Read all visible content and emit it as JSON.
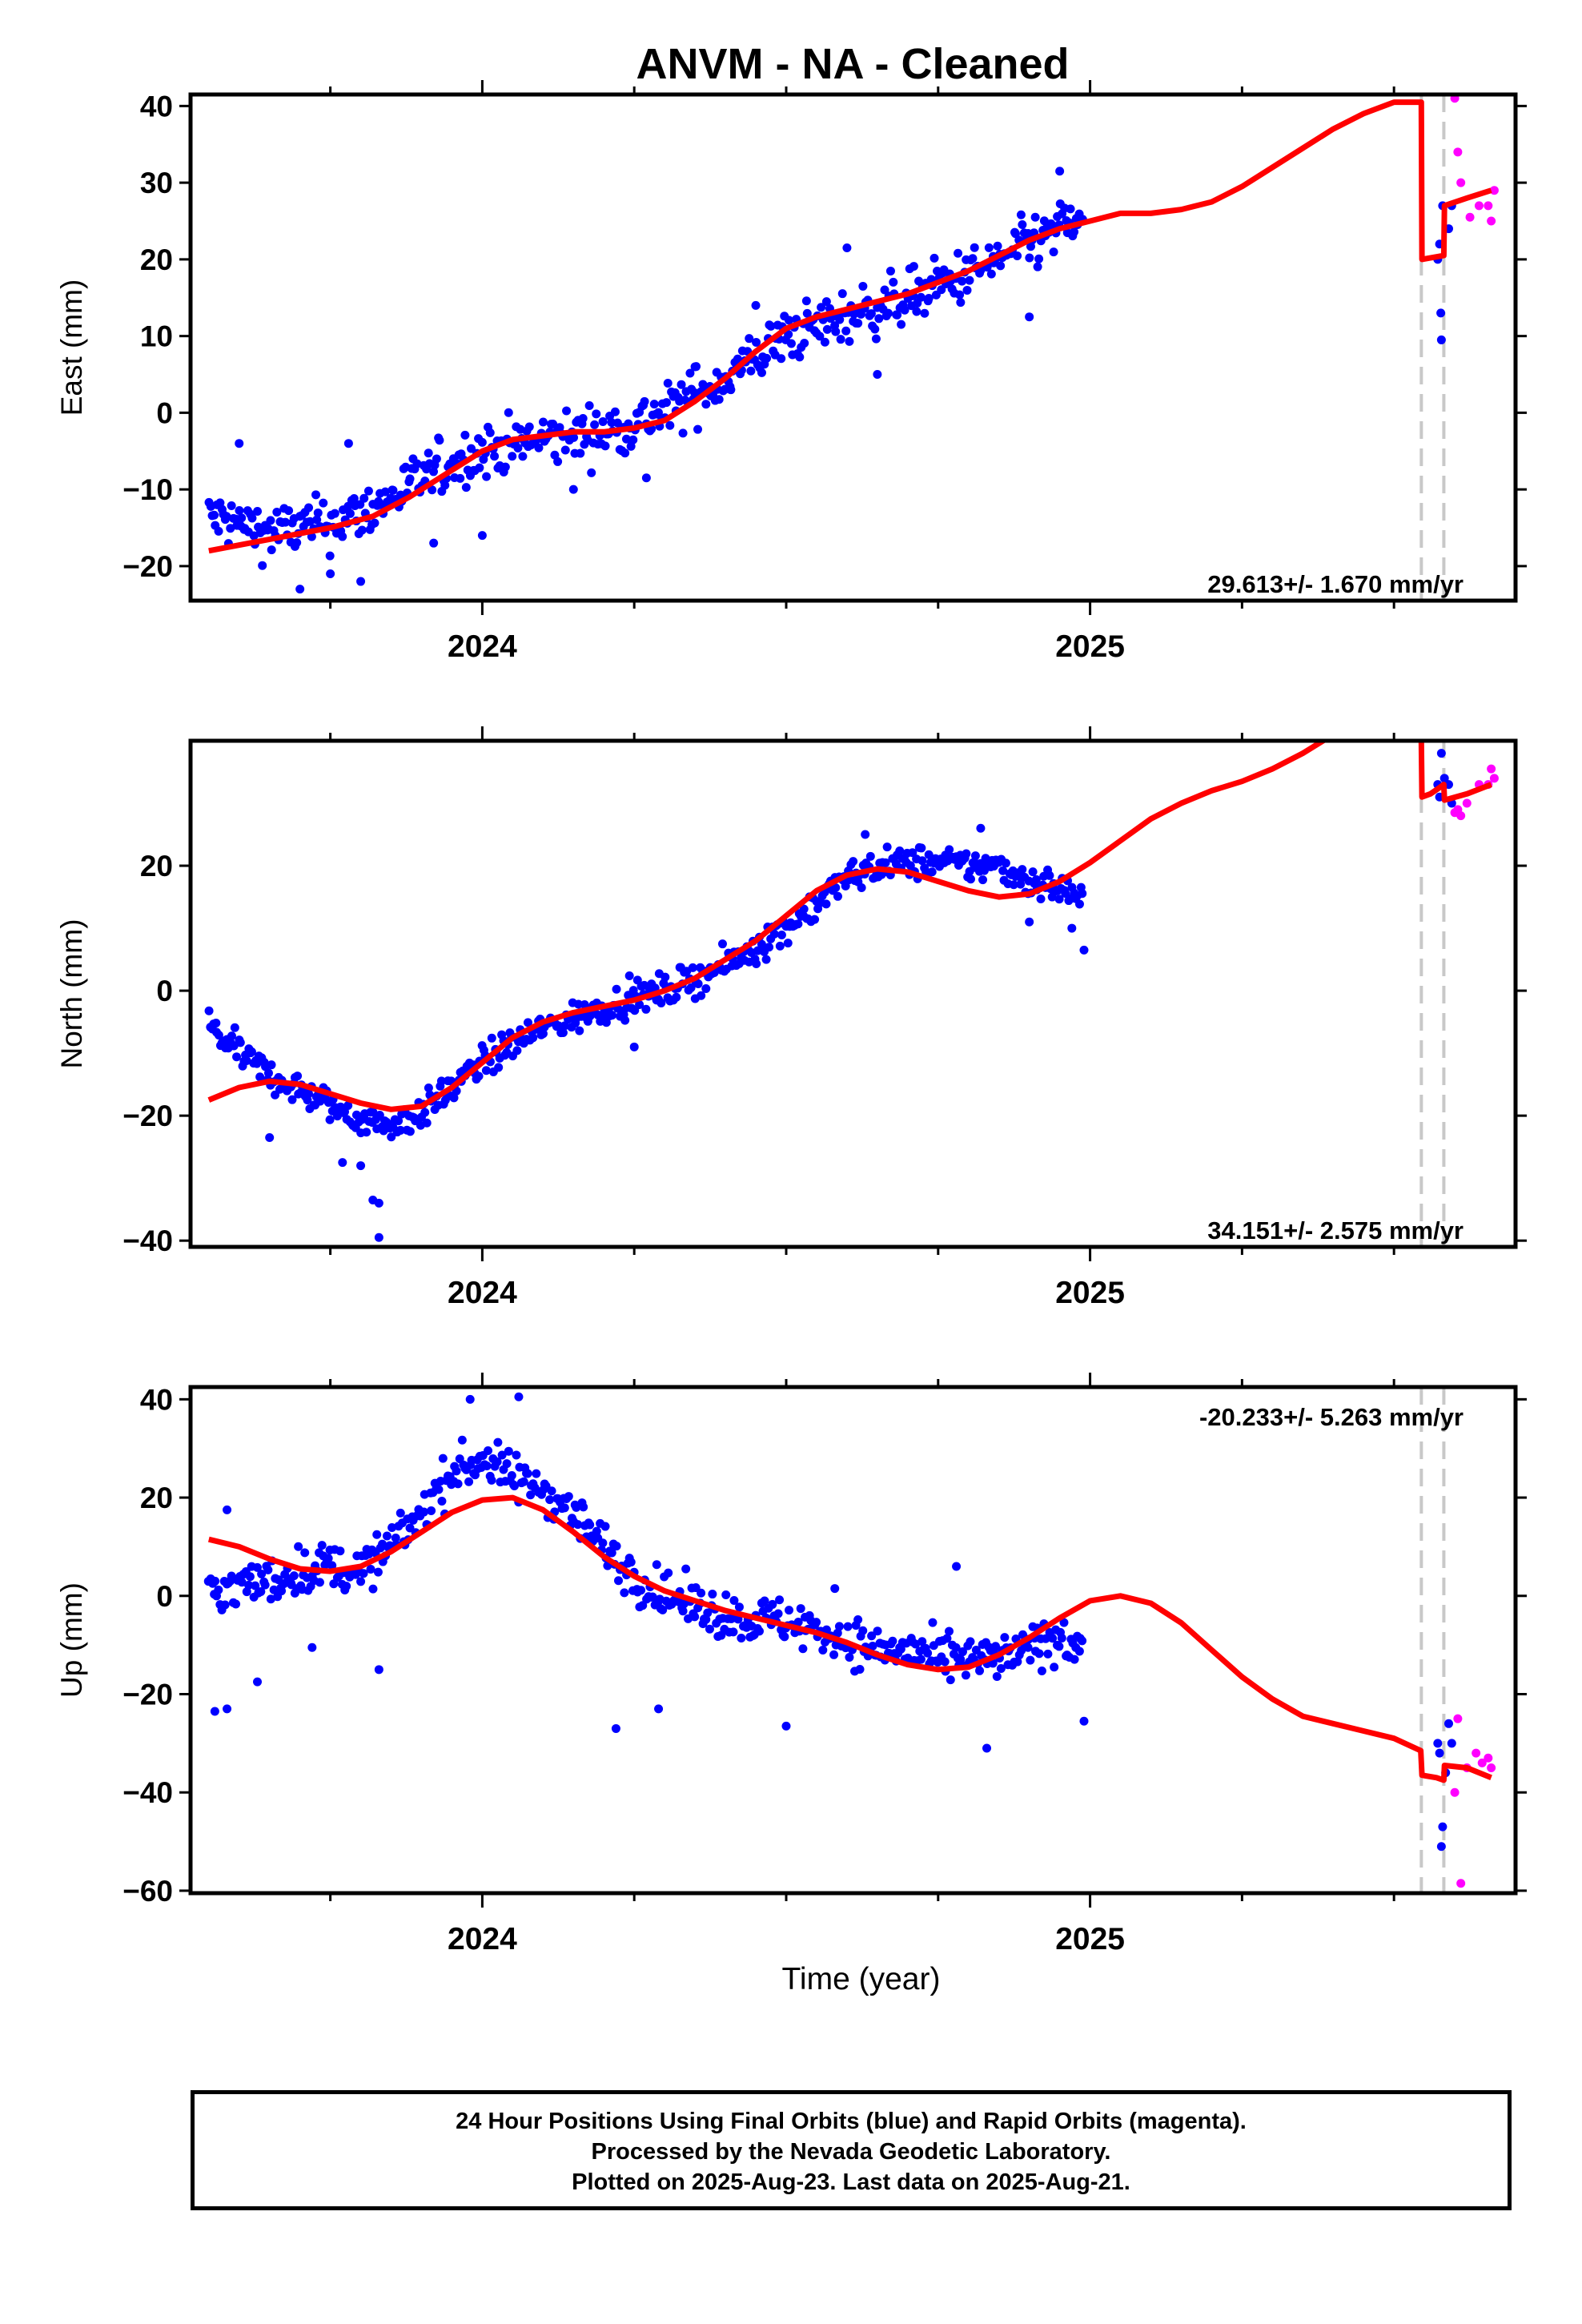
{
  "title": "ANVM  - NA - Cleaned",
  "chart_data": [
    {
      "type": "scatter",
      "panel": "east",
      "ylabel": "East (mm)",
      "ylim": [
        -24.5,
        41.5
      ],
      "yticks": [
        -20,
        -10,
        0,
        10,
        20,
        30,
        40
      ],
      "xlim": [
        2023.52,
        2025.7
      ],
      "xticks": [
        2024,
        2025
      ],
      "rate_text": "29.613+/- 1.670 mm/yr",
      "rate_position": "bottom-right",
      "offset_lines": [
        2025.545,
        2025.582
      ],
      "model": [
        [
          2023.55,
          -18
        ],
        [
          2023.65,
          -16.5
        ],
        [
          2023.75,
          -15
        ],
        [
          2023.82,
          -13.5
        ],
        [
          2023.88,
          -11
        ],
        [
          2023.95,
          -7.5
        ],
        [
          2024.0,
          -5
        ],
        [
          2024.05,
          -3.5
        ],
        [
          2024.1,
          -3
        ],
        [
          2024.15,
          -2.5
        ],
        [
          2024.2,
          -2.5
        ],
        [
          2024.25,
          -2
        ],
        [
          2024.3,
          -1
        ],
        [
          2024.35,
          1.5
        ],
        [
          2024.4,
          4.5
        ],
        [
          2024.45,
          8
        ],
        [
          2024.5,
          11
        ],
        [
          2024.55,
          12.5
        ],
        [
          2024.6,
          13.5
        ],
        [
          2024.65,
          14.5
        ],
        [
          2024.7,
          15.5
        ],
        [
          2024.75,
          17
        ],
        [
          2024.8,
          18.5
        ],
        [
          2024.85,
          20.5
        ],
        [
          2024.9,
          22.5
        ],
        [
          2024.95,
          24
        ],
        [
          2025.0,
          25
        ],
        [
          2025.05,
          26
        ],
        [
          2025.1,
          26
        ],
        [
          2025.15,
          26.5
        ],
        [
          2025.2,
          27.5
        ],
        [
          2025.25,
          29.5
        ],
        [
          2025.3,
          32
        ],
        [
          2025.35,
          34.5
        ],
        [
          2025.4,
          37
        ],
        [
          2025.45,
          39
        ],
        [
          2025.5,
          40.5
        ],
        [
          2025.545,
          40.5
        ],
        [
          2025.546,
          20
        ],
        [
          2025.582,
          20.5
        ],
        [
          2025.583,
          27
        ],
        [
          2025.62,
          28
        ],
        [
          2025.66,
          29
        ]
      ],
      "final_anchors": [
        [
          2023.55,
          -13.5
        ],
        [
          2023.65,
          -15.5
        ],
        [
          2023.75,
          -14.5
        ],
        [
          2023.82,
          -12.5
        ],
        [
          2023.88,
          -9.5
        ],
        [
          2023.95,
          -6.5
        ],
        [
          2024.0,
          -5
        ],
        [
          2024.1,
          -3.5
        ],
        [
          2024.2,
          -2.5
        ],
        [
          2024.3,
          0
        ],
        [
          2024.4,
          4.5
        ],
        [
          2024.5,
          10
        ],
        [
          2024.6,
          12.5
        ],
        [
          2024.7,
          15
        ],
        [
          2024.8,
          18
        ],
        [
          2024.9,
          22
        ],
        [
          2024.99,
          25.5
        ]
      ],
      "final_noise": 3.0,
      "final_outliers": [
        [
          2023.6,
          -4
        ],
        [
          2023.7,
          -23
        ],
        [
          2023.75,
          -21
        ],
        [
          2023.78,
          -4
        ],
        [
          2023.8,
          -22
        ],
        [
          2023.92,
          -17
        ],
        [
          2024.0,
          -16
        ],
        [
          2024.15,
          -10
        ],
        [
          2024.27,
          -8.5
        ],
        [
          2024.35,
          6
        ],
        [
          2024.45,
          14
        ],
        [
          2024.6,
          21.5
        ],
        [
          2024.65,
          5
        ],
        [
          2024.95,
          31.5
        ],
        [
          2024.9,
          12.5
        ]
      ],
      "rapid_points": [
        [
          2025.572,
          20
        ],
        [
          2025.575,
          22
        ],
        [
          2025.58,
          27
        ],
        [
          2025.577,
          13
        ],
        [
          2025.578,
          9.5
        ],
        [
          2025.59,
          24
        ],
        [
          2025.595,
          27
        ],
        [
          2025.6,
          41
        ],
        [
          2025.605,
          34
        ],
        [
          2025.61,
          30
        ],
        [
          2025.625,
          25.5
        ],
        [
          2025.64,
          27
        ],
        [
          2025.655,
          27
        ],
        [
          2025.66,
          25
        ],
        [
          2025.665,
          29
        ]
      ],
      "rapid_magenta_from": 2025.597
    },
    {
      "type": "scatter",
      "panel": "north",
      "ylabel": "North (mm)",
      "ylim": [
        -41,
        40
      ],
      "yticks": [
        -40,
        -20,
        0,
        20
      ],
      "xlim": [
        2023.52,
        2025.7
      ],
      "xticks": [
        2024,
        2025
      ],
      "rate_text": "34.151+/- 2.575 mm/yr",
      "rate_position": "bottom-right",
      "offset_lines": [
        2025.545,
        2025.582
      ],
      "model": [
        [
          2023.55,
          -17.5
        ],
        [
          2023.6,
          -15.5
        ],
        [
          2023.65,
          -14.5
        ],
        [
          2023.7,
          -15
        ],
        [
          2023.75,
          -16.5
        ],
        [
          2023.8,
          -18
        ],
        [
          2023.85,
          -19
        ],
        [
          2023.9,
          -18.5
        ],
        [
          2023.95,
          -15.5
        ],
        [
          2024.0,
          -11.5
        ],
        [
          2024.05,
          -7.5
        ],
        [
          2024.1,
          -5
        ],
        [
          2024.15,
          -3.5
        ],
        [
          2024.2,
          -2.5
        ],
        [
          2024.25,
          -1.5
        ],
        [
          2024.3,
          0
        ],
        [
          2024.35,
          2
        ],
        [
          2024.4,
          5
        ],
        [
          2024.45,
          8
        ],
        [
          2024.5,
          12
        ],
        [
          2024.55,
          16
        ],
        [
          2024.6,
          18.5
        ],
        [
          2024.65,
          19.5
        ],
        [
          2024.7,
          19
        ],
        [
          2024.75,
          17.5
        ],
        [
          2024.8,
          16
        ],
        [
          2024.85,
          15
        ],
        [
          2024.9,
          15.5
        ],
        [
          2024.95,
          17.5
        ],
        [
          2025.0,
          20.5
        ],
        [
          2025.05,
          24
        ],
        [
          2025.1,
          27.5
        ],
        [
          2025.15,
          30
        ],
        [
          2025.2,
          32
        ],
        [
          2025.25,
          33.5
        ],
        [
          2025.3,
          35.5
        ],
        [
          2025.35,
          38
        ],
        [
          2025.4,
          41
        ],
        [
          2025.45,
          44
        ],
        [
          2025.5,
          46
        ],
        [
          2025.544,
          46
        ],
        [
          2025.545,
          40
        ],
        [
          2025.546,
          31
        ],
        [
          2025.56,
          31.5
        ],
        [
          2025.575,
          32.5
        ],
        [
          2025.582,
          33
        ],
        [
          2025.583,
          30.5
        ],
        [
          2025.62,
          31.5
        ],
        [
          2025.66,
          33
        ]
      ],
      "final_anchors": [
        [
          2023.55,
          -5.5
        ],
        [
          2023.6,
          -10
        ],
        [
          2023.65,
          -13.5
        ],
        [
          2023.7,
          -16
        ],
        [
          2023.75,
          -18.5
        ],
        [
          2023.8,
          -20.5
        ],
        [
          2023.85,
          -21.5
        ],
        [
          2023.9,
          -19.5
        ],
        [
          2023.95,
          -15.5
        ],
        [
          2024.0,
          -11.5
        ],
        [
          2024.05,
          -8.5
        ],
        [
          2024.1,
          -6
        ],
        [
          2024.15,
          -4.5
        ],
        [
          2024.2,
          -2.5
        ],
        [
          2024.3,
          0
        ],
        [
          2024.4,
          4
        ],
        [
          2024.45,
          7
        ],
        [
          2024.5,
          10
        ],
        [
          2024.55,
          14
        ],
        [
          2024.6,
          18
        ],
        [
          2024.65,
          20
        ],
        [
          2024.7,
          20.5
        ],
        [
          2024.75,
          20.5
        ],
        [
          2024.8,
          20
        ],
        [
          2024.85,
          20
        ],
        [
          2024.9,
          17.5
        ],
        [
          2024.95,
          16.5
        ],
        [
          2024.99,
          14.5
        ]
      ],
      "final_noise": 2.2,
      "final_outliers": [
        [
          2023.65,
          -23.5
        ],
        [
          2023.77,
          -27.5
        ],
        [
          2023.8,
          -28
        ],
        [
          2023.82,
          -33.5
        ],
        [
          2023.83,
          -34
        ],
        [
          2023.83,
          -39.5
        ],
        [
          2024.25,
          -9
        ],
        [
          2024.63,
          25
        ],
        [
          2024.82,
          26
        ],
        [
          2024.99,
          6.5
        ],
        [
          2024.97,
          10
        ],
        [
          2024.9,
          11
        ]
      ],
      "rapid_points": [
        [
          2025.572,
          33
        ],
        [
          2025.575,
          31
        ],
        [
          2025.578,
          38
        ],
        [
          2025.583,
          34
        ],
        [
          2025.59,
          33
        ],
        [
          2025.595,
          30
        ],
        [
          2025.6,
          28.5
        ],
        [
          2025.605,
          29
        ],
        [
          2025.61,
          28
        ],
        [
          2025.62,
          30
        ],
        [
          2025.64,
          33
        ],
        [
          2025.655,
          33
        ],
        [
          2025.66,
          35.5
        ],
        [
          2025.665,
          34
        ]
      ],
      "rapid_magenta_from": 2025.597
    },
    {
      "type": "scatter",
      "panel": "up",
      "ylabel": "Up (mm)",
      "xlabel": "Time (year)",
      "ylim": [
        -60.5,
        42.5
      ],
      "yticks": [
        -60,
        -40,
        -20,
        0,
        20,
        40
      ],
      "xlim": [
        2023.52,
        2025.7
      ],
      "xticks": [
        2024,
        2025
      ],
      "rate_text": "-20.233+/- 5.263 mm/yr",
      "rate_position": "top-right",
      "offset_lines": [
        2025.545,
        2025.582
      ],
      "model": [
        [
          2023.55,
          11.5
        ],
        [
          2023.6,
          10
        ],
        [
          2023.65,
          7.5
        ],
        [
          2023.7,
          5.5
        ],
        [
          2023.75,
          5
        ],
        [
          2023.8,
          6
        ],
        [
          2023.85,
          9
        ],
        [
          2023.9,
          13
        ],
        [
          2023.95,
          17
        ],
        [
          2024.0,
          19.5
        ],
        [
          2024.05,
          20
        ],
        [
          2024.1,
          17.5
        ],
        [
          2024.15,
          13
        ],
        [
          2024.2,
          8
        ],
        [
          2024.25,
          4
        ],
        [
          2024.3,
          1
        ],
        [
          2024.35,
          -1
        ],
        [
          2024.4,
          -3
        ],
        [
          2024.45,
          -4.5
        ],
        [
          2024.5,
          -6
        ],
        [
          2024.55,
          -7.5
        ],
        [
          2024.6,
          -9.5
        ],
        [
          2024.65,
          -12
        ],
        [
          2024.7,
          -14
        ],
        [
          2024.75,
          -15
        ],
        [
          2024.8,
          -14.5
        ],
        [
          2024.85,
          -12
        ],
        [
          2024.9,
          -8.5
        ],
        [
          2024.95,
          -4.5
        ],
        [
          2025.0,
          -1
        ],
        [
          2025.05,
          0
        ],
        [
          2025.1,
          -1.5
        ],
        [
          2025.15,
          -5.5
        ],
        [
          2025.2,
          -11
        ],
        [
          2025.25,
          -16.5
        ],
        [
          2025.3,
          -21
        ],
        [
          2025.35,
          -24.5
        ],
        [
          2025.4,
          -26
        ],
        [
          2025.45,
          -27.5
        ],
        [
          2025.5,
          -29
        ],
        [
          2025.544,
          -31.5
        ],
        [
          2025.546,
          -36.5
        ],
        [
          2025.57,
          -37
        ],
        [
          2025.582,
          -37.5
        ],
        [
          2025.583,
          -34.5
        ],
        [
          2025.62,
          -35
        ],
        [
          2025.66,
          -37
        ]
      ],
      "final_anchors": [
        [
          2023.55,
          1
        ],
        [
          2023.6,
          2
        ],
        [
          2023.65,
          3
        ],
        [
          2023.7,
          5
        ],
        [
          2023.75,
          6
        ],
        [
          2023.8,
          5
        ],
        [
          2023.85,
          10
        ],
        [
          2023.9,
          17
        ],
        [
          2023.95,
          25
        ],
        [
          2024.0,
          28
        ],
        [
          2024.05,
          24
        ],
        [
          2024.1,
          22
        ],
        [
          2024.15,
          17
        ],
        [
          2024.2,
          10
        ],
        [
          2024.25,
          4
        ],
        [
          2024.3,
          0
        ],
        [
          2024.35,
          -2
        ],
        [
          2024.4,
          -4
        ],
        [
          2024.45,
          -5
        ],
        [
          2024.5,
          -5
        ],
        [
          2024.55,
          -7
        ],
        [
          2024.6,
          -9
        ],
        [
          2024.65,
          -11
        ],
        [
          2024.7,
          -11
        ],
        [
          2024.75,
          -13
        ],
        [
          2024.8,
          -13
        ],
        [
          2024.85,
          -13
        ],
        [
          2024.9,
          -11
        ],
        [
          2024.95,
          -8
        ],
        [
          2024.99,
          -10
        ]
      ],
      "final_noise": 4.0,
      "final_outliers": [
        [
          2023.56,
          -23.5
        ],
        [
          2023.58,
          -23
        ],
        [
          2023.58,
          17.5
        ],
        [
          2023.63,
          -17.5
        ],
        [
          2023.72,
          -10.5
        ],
        [
          2023.83,
          -15
        ],
        [
          2023.98,
          40
        ],
        [
          2024.06,
          40.5
        ],
        [
          2024.22,
          -27
        ],
        [
          2024.29,
          -23
        ],
        [
          2024.5,
          -26.5
        ],
        [
          2024.58,
          1.5
        ],
        [
          2024.78,
          6
        ],
        [
          2024.83,
          -31
        ],
        [
          2024.99,
          -25.5
        ]
      ],
      "rapid_points": [
        [
          2025.572,
          -30
        ],
        [
          2025.575,
          -32
        ],
        [
          2025.578,
          -51
        ],
        [
          2025.58,
          -47
        ],
        [
          2025.585,
          -36
        ],
        [
          2025.59,
          -26
        ],
        [
          2025.595,
          -30
        ],
        [
          2025.6,
          -40
        ],
        [
          2025.605,
          -25
        ],
        [
          2025.61,
          -58.5
        ],
        [
          2025.62,
          -35
        ],
        [
          2025.635,
          -32
        ],
        [
          2025.645,
          -34
        ],
        [
          2025.655,
          -33
        ],
        [
          2025.66,
          -35
        ]
      ],
      "rapid_magenta_from": 2025.597
    }
  ],
  "caption": {
    "line1": "24 Hour Positions Using Final Orbits (blue) and Rapid Orbits (magenta).",
    "line2": "Processed by the Nevada Geodetic Laboratory.",
    "line3": "Plotted on 2025-Aug-23. Last data on 2025-Aug-21."
  },
  "colors": {
    "final_points": "#0000ff",
    "rapid_points": "#ff00ff",
    "model_line": "#ff0000",
    "offset_lines": "#c8c8c8",
    "frame": "#000000"
  }
}
